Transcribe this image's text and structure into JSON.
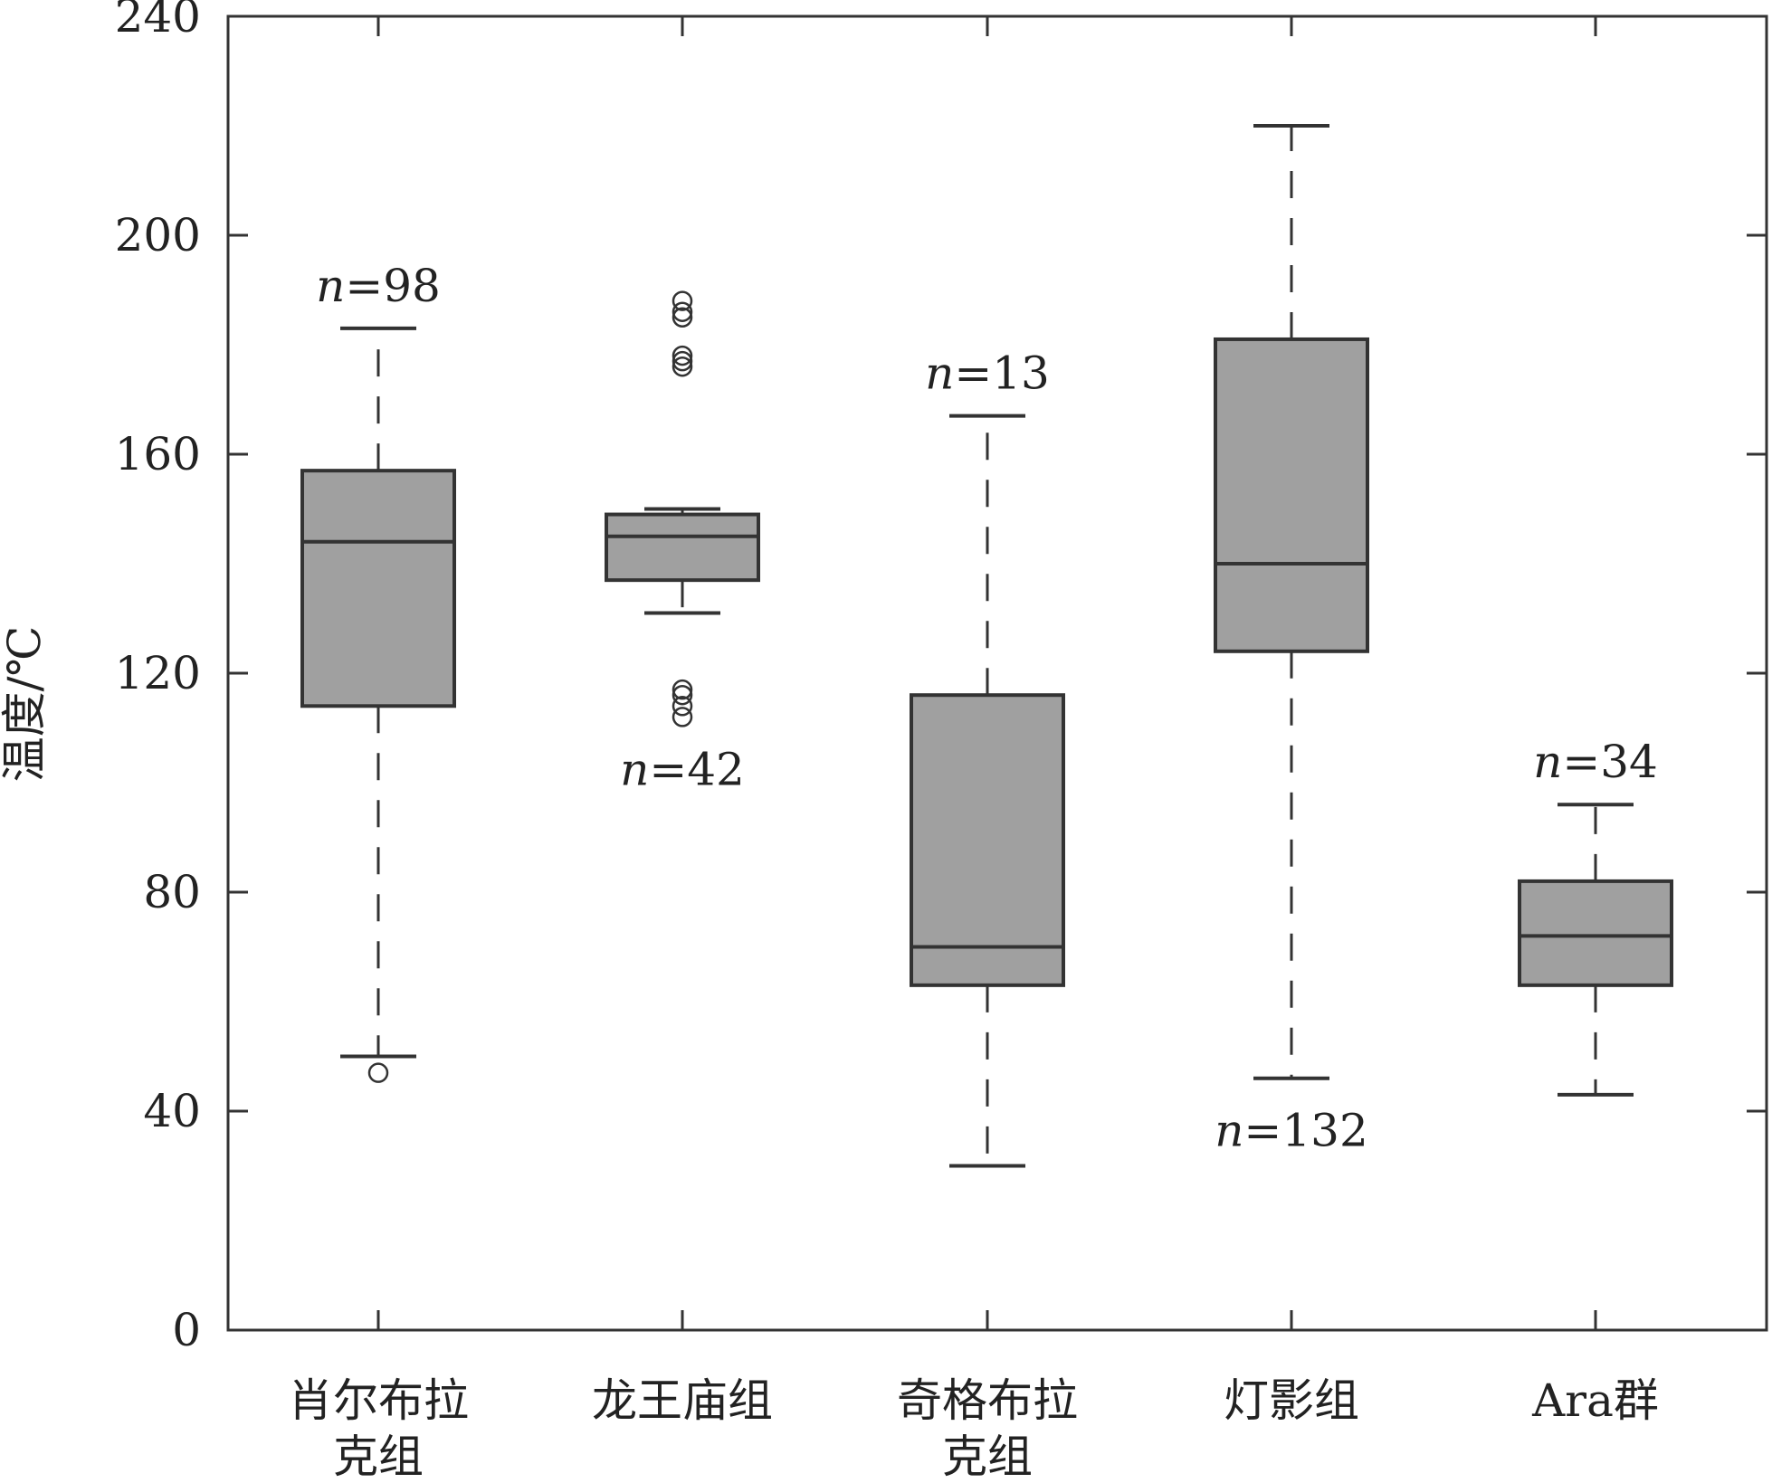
{
  "chart_data": {
    "type": "box",
    "ylabel": "温度/℃",
    "xlabel": "",
    "ylim": [
      0,
      240
    ],
    "yticks": [
      0,
      40,
      80,
      120,
      160,
      200,
      240
    ],
    "grid": false,
    "colors": {
      "box_fill": "#a0a0a0",
      "stroke": "#333333"
    },
    "categories": [
      "肖尔布拉克组",
      "龙王庙组",
      "奇格布拉克组",
      "灯影组",
      "Ara群"
    ],
    "category_label_lines": [
      [
        "肖尔布拉",
        "克组"
      ],
      [
        "龙王庙组"
      ],
      [
        "奇格布拉",
        "克组"
      ],
      [
        "灯影组"
      ],
      [
        "Ara群"
      ]
    ],
    "boxes": [
      {
        "name": "肖尔布拉克组",
        "whisker_low": 50,
        "q1": 114,
        "median": 144,
        "q3": 157,
        "whisker_high": 183,
        "outliers": [
          47
        ],
        "n_text": "98",
        "n_position": "above"
      },
      {
        "name": "龙王庙组",
        "whisker_low": 131,
        "q1": 137,
        "median": 145,
        "q3": 149,
        "whisker_high": 150,
        "outliers": [
          112,
          114,
          116,
          117,
          176,
          177,
          178,
          185,
          186,
          188
        ],
        "n_text": "42",
        "n_position": "below"
      },
      {
        "name": "奇格布拉克组",
        "whisker_low": 30,
        "q1": 63,
        "median": 70,
        "q3": 116,
        "whisker_high": 167,
        "outliers": [],
        "n_text": "13",
        "n_position": "above"
      },
      {
        "name": "灯影组",
        "whisker_low": 46,
        "q1": 124,
        "median": 140,
        "q3": 181,
        "whisker_high": 220,
        "outliers": [],
        "n_text": "132",
        "n_position": "below"
      },
      {
        "name": "Ara群",
        "whisker_low": 43,
        "q1": 63,
        "median": 72,
        "q3": 82,
        "whisker_high": 96,
        "outliers": [],
        "n_text": "34",
        "n_position": "above"
      }
    ],
    "n_prefix": "n",
    "n_equals": "="
  }
}
